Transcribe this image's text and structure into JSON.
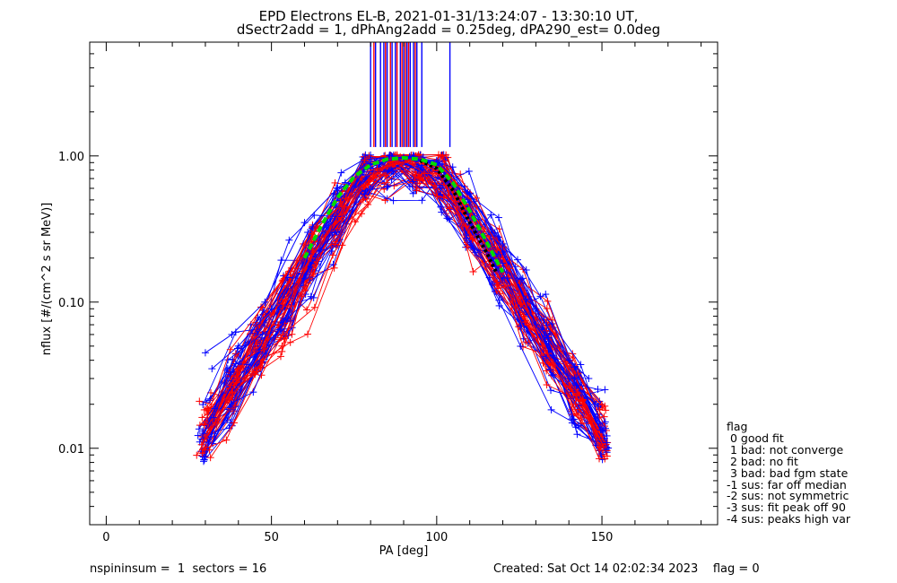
{
  "title_line1": "EPD Electrons EL-B, 2021-01-31/13:24:07 - 13:30:10 UT,",
  "title_line2": "dSectr2add = 1, dPhAng2add = 0.25deg, dPA290_est=    0.0deg",
  "footer_left": "nspininsum =  1  sectors = 16",
  "footer_right": "Created: Sat Oct 14 02:02:34 2023    flag = 0",
  "legend": {
    "title": "flag",
    "items": [
      " 0 good fit",
      " 1 bad: not converge",
      " 2 bad: no fit",
      " 3 bad: bad fgm state",
      "-1 sus: far off median",
      "-2 sus: not symmetric",
      "-3 sus: fit peak off 90",
      "-4 sus: peaks high var"
    ]
  },
  "colors": {
    "series_a": "#0000ff",
    "series_b": "#ff0000",
    "fit": "#00dd00",
    "median": "#000000"
  },
  "chart_data": {
    "type": "line",
    "xlabel": "PA [deg]",
    "ylabel": "nflux [#/(cm^2 s sr MeV)]",
    "xlim": [
      -5,
      185
    ],
    "ylim": [
      0.003,
      6
    ],
    "yscale": "log",
    "xticks": [
      0,
      50,
      100,
      150
    ],
    "yticks": [
      0.01,
      0.1,
      1.0
    ],
    "ytick_labels": [
      "0.01",
      "0.10",
      "1.00"
    ],
    "peak_pa_markers_a": [
      80,
      81.5,
      83,
      84,
      85,
      86.5,
      87.5,
      89,
      90,
      91,
      92,
      93,
      94,
      95.5,
      104
    ],
    "peak_pa_markers_b": [
      81,
      84.5,
      86,
      88,
      89.5,
      90.5,
      91.5,
      93.5
    ],
    "sample_series": [
      {
        "pa": [
          32,
          40,
          50,
          61,
          70,
          80,
          90,
          100,
          110,
          120,
          130,
          140,
          148
        ],
        "values": [
          0.035,
          0.05,
          0.09,
          0.3,
          0.55,
          0.88,
          0.97,
          0.9,
          0.48,
          0.22,
          0.07,
          0.03,
          0.02
        ]
      },
      {
        "pa": [
          33,
          42,
          52,
          62,
          72,
          82,
          92,
          102,
          112,
          122,
          132,
          142,
          150
        ],
        "values": [
          0.015,
          0.03,
          0.07,
          0.2,
          0.45,
          0.82,
          0.92,
          0.82,
          0.45,
          0.17,
          0.05,
          0.02,
          0.012
        ]
      },
      {
        "pa": [
          30,
          38,
          48,
          60,
          70,
          80,
          90,
          100,
          110,
          120,
          130,
          140,
          146
        ],
        "values": [
          0.045,
          0.06,
          0.1,
          0.35,
          0.6,
          0.95,
          0.98,
          0.93,
          0.55,
          0.25,
          0.09,
          0.04,
          0.03
        ]
      }
    ],
    "fit_curve": {
      "pa": [
        60,
        65,
        70,
        75,
        80,
        85,
        90,
        95,
        100,
        105,
        110,
        115,
        120
      ],
      "values": [
        0.2,
        0.33,
        0.52,
        0.72,
        0.87,
        0.95,
        0.97,
        0.95,
        0.87,
        0.65,
        0.42,
        0.26,
        0.16
      ]
    },
    "median_curve": {
      "pa": [
        95,
        100,
        105,
        110,
        115,
        118
      ],
      "values": [
        0.93,
        0.82,
        0.58,
        0.35,
        0.22,
        0.16
      ]
    }
  }
}
